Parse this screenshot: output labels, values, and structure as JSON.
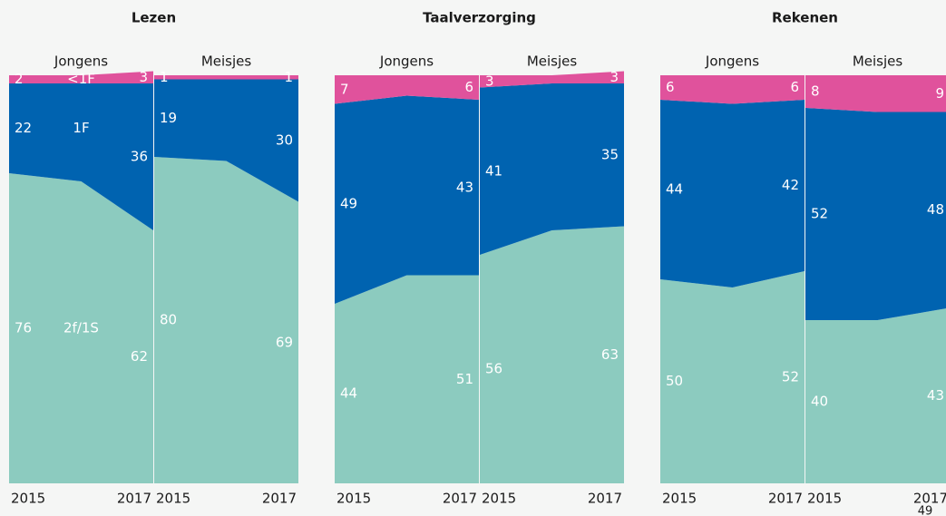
{
  "chart_data": [
    {
      "type": "stacked-area",
      "title": "Lezen",
      "series_labels": [
        "2f/1S",
        "1F",
        "<1F"
      ],
      "panels": [
        {
          "name": "Jongens",
          "categories": [
            "2015",
            null,
            "2017"
          ],
          "series": [
            {
              "color": "#8ccbbf",
              "values": [
                76,
                74,
                62
              ]
            },
            {
              "color": "#0063b0",
              "values": [
                22,
                24,
                36
              ]
            },
            {
              "color": "#e0529c",
              "values": [
                2,
                2,
                3
              ]
            }
          ]
        },
        {
          "name": "Meisjes",
          "categories": [
            "2015",
            null,
            "2017"
          ],
          "series": [
            {
              "color": "#8ccbbf",
              "values": [
                80,
                79,
                69
              ]
            },
            {
              "color": "#0063b0",
              "values": [
                19,
                20,
                30
              ]
            },
            {
              "color": "#e0529c",
              "values": [
                1,
                1,
                1
              ]
            }
          ]
        }
      ]
    },
    {
      "type": "stacked-area",
      "title": "Taalverzorging",
      "panels": [
        {
          "name": "Jongens",
          "categories": [
            "2015",
            null,
            "2017"
          ],
          "series": [
            {
              "color": "#8ccbbf",
              "values": [
                44,
                51,
                51
              ]
            },
            {
              "color": "#0063b0",
              "values": [
                49,
                44,
                43
              ]
            },
            {
              "color": "#e0529c",
              "values": [
                7,
                5,
                6
              ]
            }
          ]
        },
        {
          "name": "Meisjes",
          "categories": [
            "2015",
            null,
            "2017"
          ],
          "series": [
            {
              "color": "#8ccbbf",
              "values": [
                56,
                62,
                63
              ]
            },
            {
              "color": "#0063b0",
              "values": [
                41,
                36,
                35
              ]
            },
            {
              "color": "#e0529c",
              "values": [
                3,
                2,
                3
              ]
            }
          ]
        }
      ]
    },
    {
      "type": "stacked-area",
      "title": "Rekenen",
      "panels": [
        {
          "name": "Jongens",
          "categories": [
            "2015",
            null,
            "2017"
          ],
          "series": [
            {
              "color": "#8ccbbf",
              "values": [
                50,
                48,
                52
              ]
            },
            {
              "color": "#0063b0",
              "values": [
                44,
                45,
                42
              ]
            },
            {
              "color": "#e0529c",
              "values": [
                6,
                7,
                6
              ]
            }
          ]
        },
        {
          "name": "Meisjes",
          "categories": [
            "2015",
            null,
            "2017"
          ],
          "series": [
            {
              "color": "#8ccbbf",
              "values": [
                40,
                40,
                43
              ]
            },
            {
              "color": "#0063b0",
              "values": [
                52,
                51,
                48
              ]
            },
            {
              "color": "#e0529c",
              "values": [
                8,
                9,
                9
              ]
            }
          ]
        }
      ]
    }
  ],
  "page_number": "49"
}
